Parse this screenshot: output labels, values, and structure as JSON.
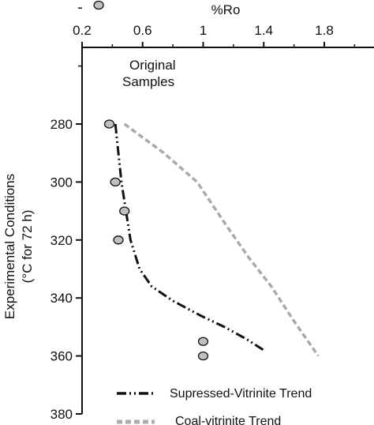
{
  "chart_data": {
    "type": "scatter",
    "x_axis": {
      "label": "%Ro",
      "position": "top",
      "range": [
        0.2,
        2.0
      ],
      "ticks": [
        0.2,
        0.6,
        1,
        1.4,
        1.8
      ],
      "tick_labels": [
        "0.2",
        "0.6",
        "1",
        "1.4",
        "1.8"
      ]
    },
    "y_axis": {
      "label_line1": "Experimental Conditions",
      "label_line2": "(°C for 72 h)",
      "range": [
        230,
        380
      ],
      "inverted": true,
      "ticks": [
        280,
        300,
        320,
        340,
        360,
        380
      ],
      "tick_labels": [
        "280",
        "300",
        "320",
        "340",
        "360",
        "380"
      ]
    },
    "annotation": {
      "line1": "Original",
      "line2": "Samples",
      "x": 0.31,
      "y": 239
    },
    "points": [
      {
        "x": 0.31,
        "y": 239,
        "group": "original"
      },
      {
        "x": 0.38,
        "y": 280
      },
      {
        "x": 0.42,
        "y": 300
      },
      {
        "x": 0.48,
        "y": 310
      },
      {
        "x": 0.44,
        "y": 320
      },
      {
        "x": 1.0,
        "y": 355
      },
      {
        "x": 1.0,
        "y": 360
      }
    ],
    "series": [
      {
        "name": "Supressed-Vitrinite Trend",
        "style": "dash-dot-dot",
        "color": "#111111",
        "x": [
          0.42,
          0.46,
          0.52,
          0.58,
          0.66,
          0.8,
          0.98,
          1.14,
          1.28,
          1.4
        ],
        "y": [
          280,
          300,
          320,
          330,
          336,
          341,
          346,
          350,
          354,
          358
        ]
      },
      {
        "name": "Coal-vitrinite Trend",
        "style": "dashed",
        "color": "#aaaaaa",
        "x": [
          0.48,
          0.74,
          0.96,
          1.14,
          1.3,
          1.45,
          1.6,
          1.76
        ],
        "y": [
          280,
          290,
          300,
          314,
          326,
          336,
          348,
          360
        ]
      }
    ],
    "legend": {
      "position": "bottom-right",
      "entries": [
        {
          "label": "Supressed-Vitrinite Trend",
          "color": "#111111",
          "style": "dash-dot-dot"
        },
        {
          "label": "Coal-vitrinite Trend",
          "color": "#aaaaaa",
          "style": "dashed"
        }
      ]
    },
    "grid": false,
    "marker_fill": "#c0c0c0",
    "marker_stroke": "#111111"
  }
}
